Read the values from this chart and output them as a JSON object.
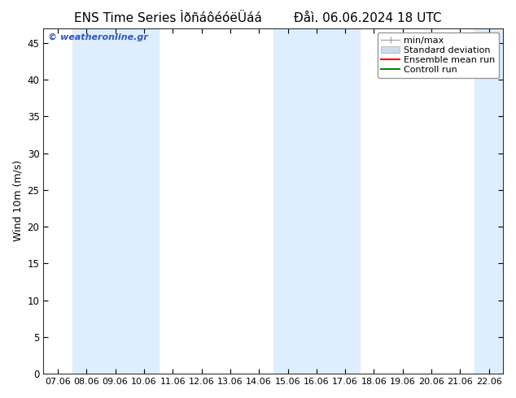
{
  "title": "ENS Time Series ÌðñáôéóëÜáá",
  "title_right": "Ðåì. 06.06.2024 18 UTC",
  "ylabel": "Wind 10m (m/s)",
  "ylim": [
    0,
    47
  ],
  "yticks": [
    0,
    5,
    10,
    15,
    20,
    25,
    30,
    35,
    40,
    45
  ],
  "xtick_labels": [
    "07.06",
    "08.06",
    "09.06",
    "10.06",
    "11.06",
    "12.06",
    "13.06",
    "14.06",
    "15.06",
    "16.06",
    "17.06",
    "18.06",
    "19.06",
    "20.06",
    "21.06",
    "22.06"
  ],
  "shade_color": "#ddeeff",
  "background_color": "#ffffff",
  "plot_bg_color": "#ffffff",
  "watermark": "© weatheronline.gr",
  "watermark_color": "#3355bb",
  "legend_items": [
    "min/max",
    "Standard deviation",
    "Ensemble mean run",
    "Controll run"
  ],
  "ensemble_mean_color": "#ff0000",
  "controll_run_color": "#008800",
  "minmax_color": "#aaaaaa",
  "stddev_color": "#ccddee",
  "title_fontsize": 11,
  "axis_fontsize": 9,
  "tick_fontsize": 8.5,
  "legend_fontsize": 8
}
